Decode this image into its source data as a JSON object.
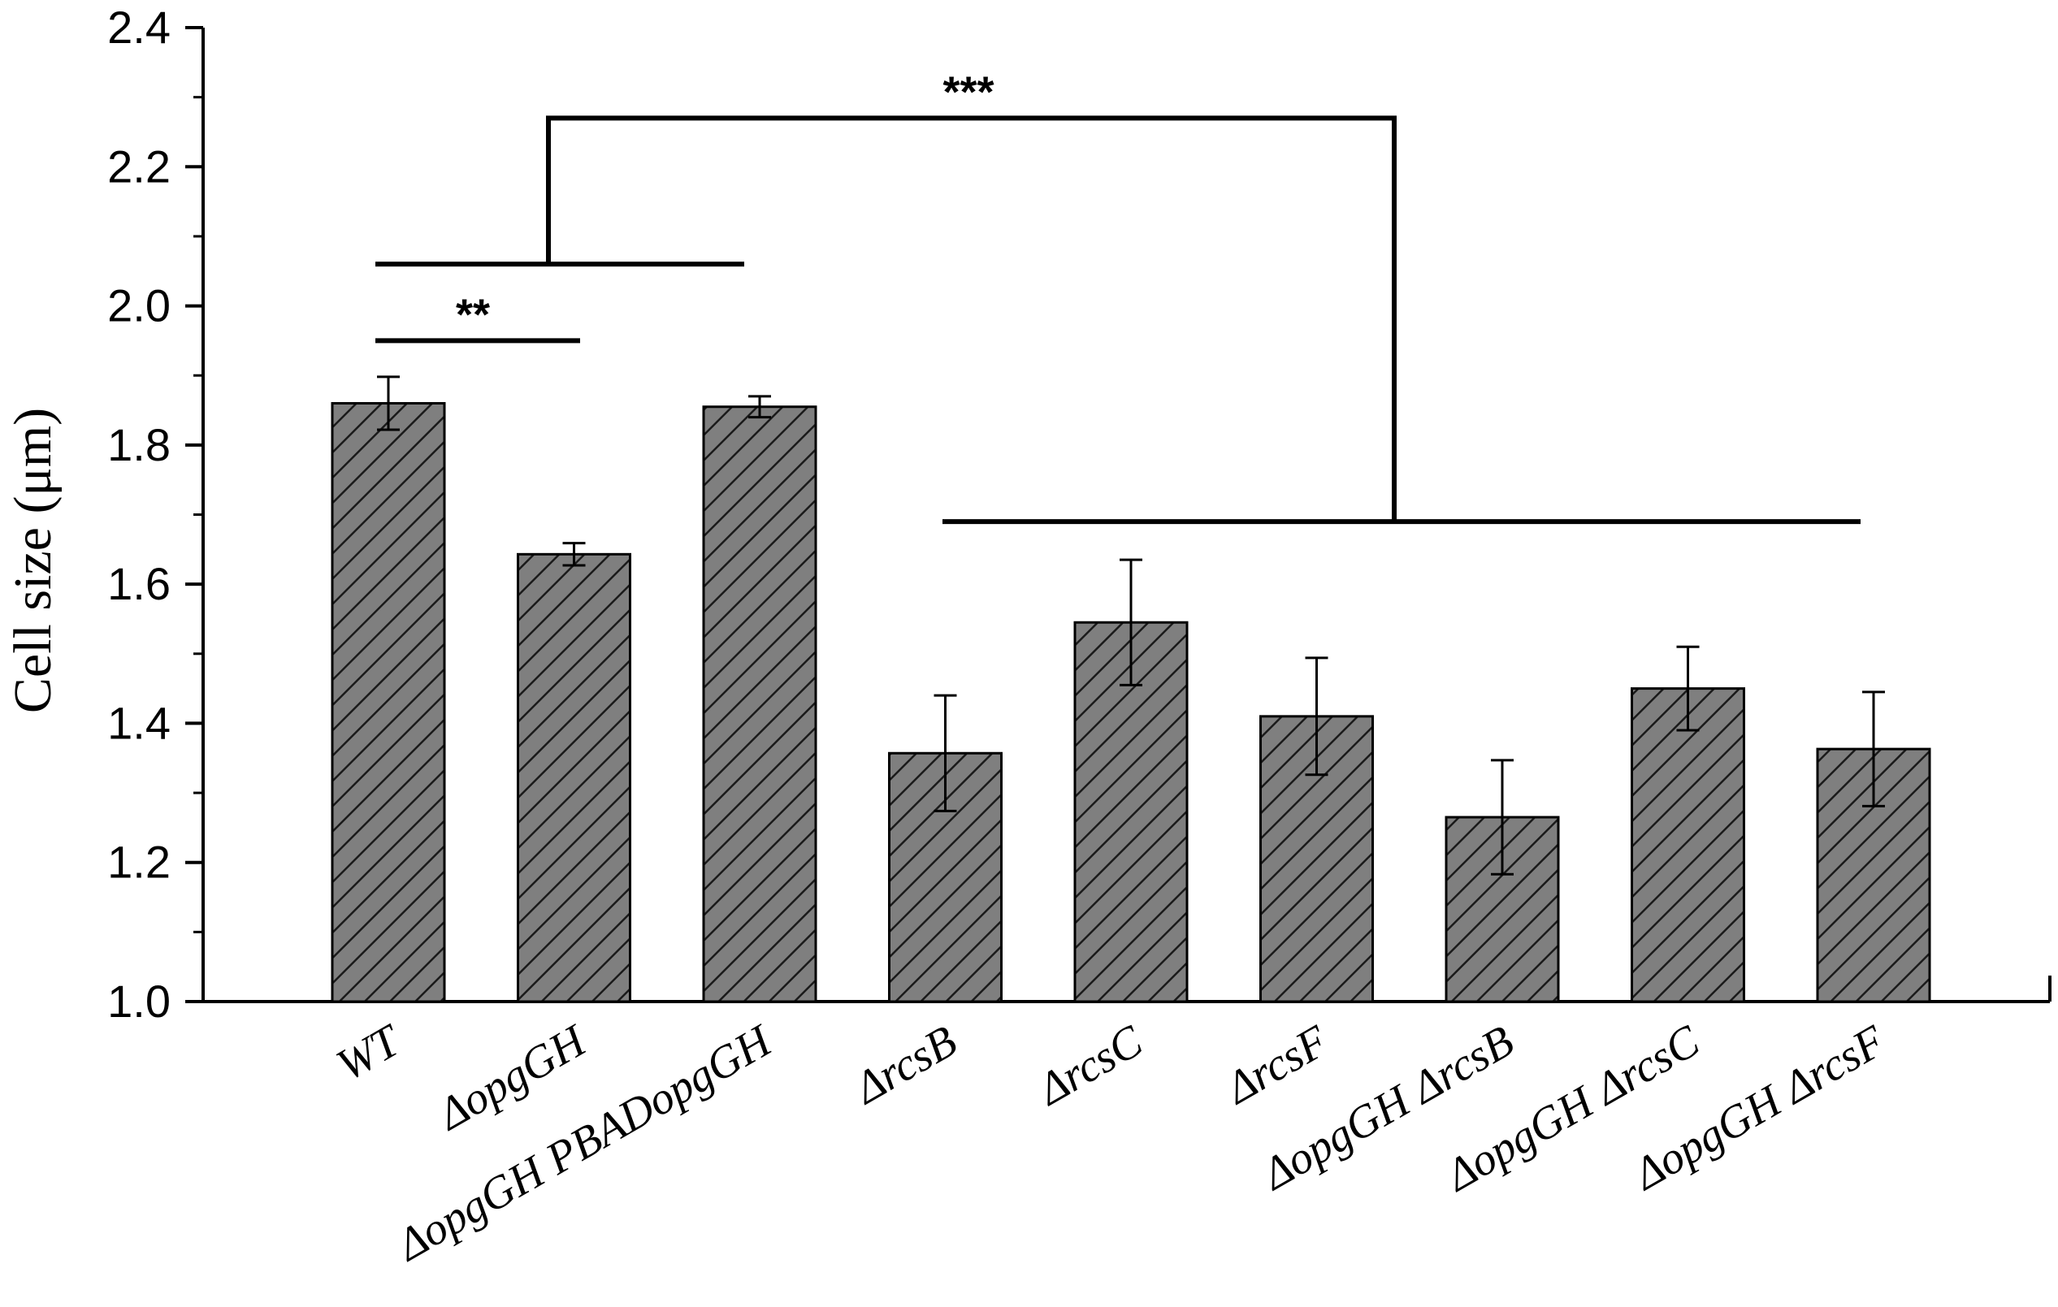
{
  "chart_data": {
    "type": "bar",
    "title": "",
    "xlabel": "",
    "ylabel": "Cell size (μm)",
    "ylim": [
      1.0,
      2.4
    ],
    "yticks": [
      "1.0",
      "1.2",
      "1.4",
      "1.6",
      "1.8",
      "2.0",
      "2.2",
      "2.4"
    ],
    "categories": [
      "WT",
      "ΔopgGH",
      "ΔopgGH  PBADopgGH",
      "ΔrcsB",
      "ΔrcsC",
      "ΔrcsF",
      "ΔopgGH  ΔrcsB",
      "ΔopgGH  ΔrcsC",
      "ΔopgGH  ΔrcsF"
    ],
    "values": [
      1.86,
      1.643,
      1.855,
      1.357,
      1.545,
      1.41,
      1.265,
      1.45,
      1.363
    ],
    "errors": [
      0.038,
      0.016,
      0.015,
      0.083,
      0.09,
      0.084,
      0.082,
      0.06,
      0.082
    ],
    "grid": false,
    "legend": "none",
    "bar_style": "dark gray with diagonal hatching",
    "significance": [
      {
        "label": "**",
        "groups": [
          "WT",
          "ΔopgGH"
        ]
      },
      {
        "label": "***",
        "groups": [
          "WT / ΔopgGH / ΔopgGH  PBADopgGH",
          "ΔrcsB through ΔopgGH  ΔrcsF"
        ]
      }
    ]
  },
  "colors": {
    "bar_fill": "#7f7f7f",
    "hatch": "#1a1a1a",
    "axis": "#000000"
  }
}
